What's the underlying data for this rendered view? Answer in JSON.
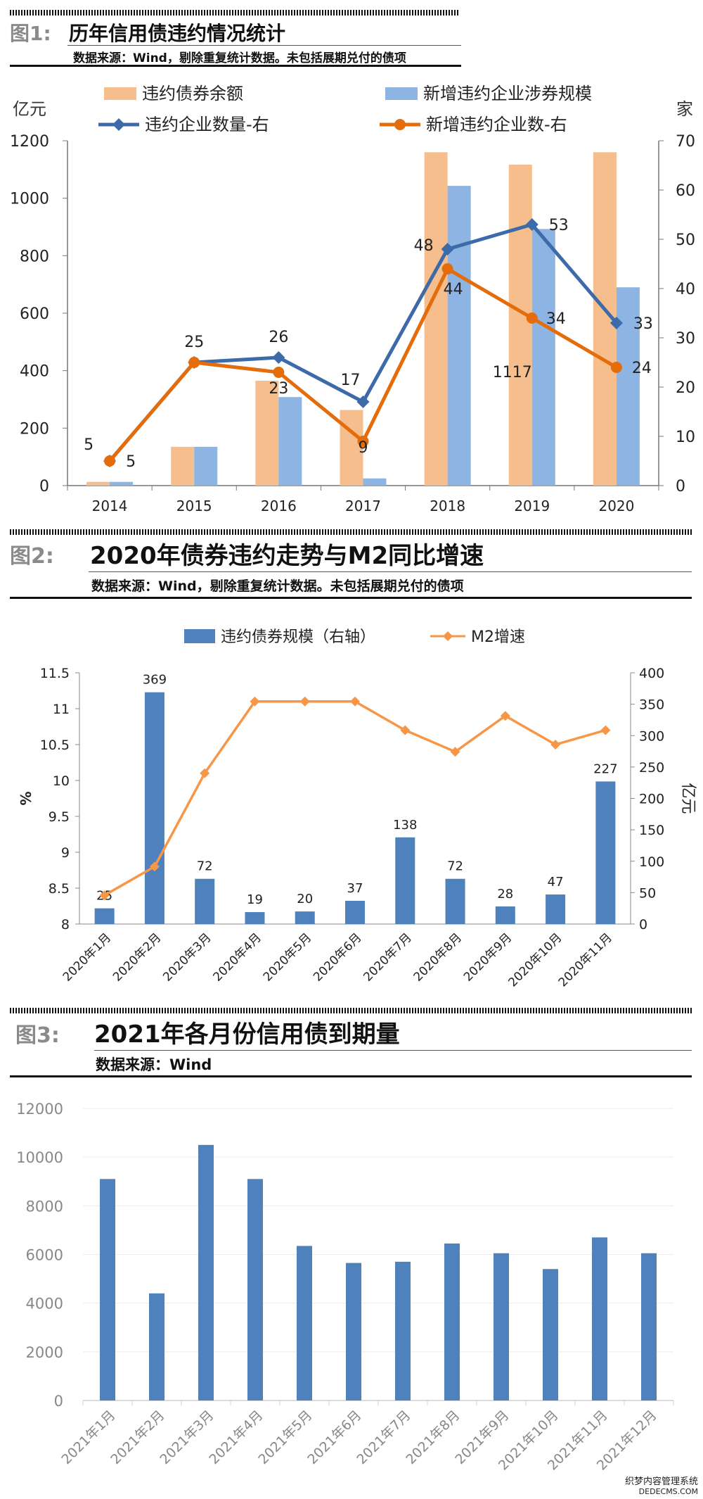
{
  "figures": [
    {
      "label": "图1:",
      "title": "历年信用债违约情况统计",
      "source": "数据来源：Wind，剔除重复统计数据。未包括展期兑付的债项",
      "chart_data": {
        "type": "bar+line",
        "categories": [
          "2014",
          "2015",
          "2016",
          "2017",
          "2018",
          "2019",
          "2020"
        ],
        "left_unit": "亿元",
        "right_unit": "家",
        "ylim_left": [
          0,
          1200
        ],
        "yticks_left": [
          "0",
          "200",
          "400",
          "600",
          "800",
          "1000",
          "1200"
        ],
        "ylim_right": [
          0,
          70
        ],
        "yticks_right": [
          "0",
          "10",
          "20",
          "30",
          "40",
          "50",
          "60",
          "70"
        ],
        "bar_series": [
          {
            "name": "违约债券余额",
            "color": "#f5be8c",
            "values": [
              13,
              135,
              365,
              263,
              1160,
              1117,
              1160
            ]
          },
          {
            "name": "新增违约企业涉券规模",
            "color": "#8db4e2",
            "values": [
              13,
              135,
              308,
              25,
              1043,
              893,
              690
            ]
          }
        ],
        "line_series": [
          {
            "name": "违约企业数量-右",
            "color": "#3d6aa8",
            "marker": "diamond",
            "values": [
              5,
              25,
              26,
              17,
              48,
              53,
              33
            ]
          },
          {
            "name": "新增违约企业数-右",
            "color": "#e46c0a",
            "marker": "circle",
            "values": [
              5,
              25,
              23,
              9,
              44,
              34,
              24
            ]
          }
        ],
        "data_labels": [
          "5",
          "5",
          "25",
          "26",
          "23",
          "17",
          "9",
          "48",
          "44",
          "53",
          "34",
          "1117",
          "33",
          "24"
        ]
      }
    },
    {
      "label": "图2:",
      "title": "2020年债券违约走势与M2同比增速",
      "source": "数据来源：Wind，剔除重复统计数据。未包括展期兑付的债项",
      "chart_data": {
        "type": "bar+line",
        "categories": [
          "2020年1月",
          "2020年2月",
          "2020年3月",
          "2020年4月",
          "2020年5月",
          "2020年6月",
          "2020年7月",
          "2020年8月",
          "2020年9月",
          "2020年10月",
          "2020年11月"
        ],
        "ylabel_left": "%",
        "ylabel_right": "亿元",
        "ylim_left": [
          8,
          11.5
        ],
        "yticks_left": [
          "8",
          "8.5",
          "9",
          "9.5",
          "10",
          "10.5",
          "11",
          "11.5"
        ],
        "ylim_right": [
          0,
          400
        ],
        "yticks_right": [
          "0",
          "50",
          "100",
          "150",
          "200",
          "250",
          "300",
          "350",
          "400"
        ],
        "bar_series": {
          "name": "违约债券规模（右轴）",
          "color": "#4f81bd",
          "values": [
            25,
            369,
            72,
            19,
            20,
            37,
            138,
            72,
            28,
            47,
            227
          ]
        },
        "line_series": {
          "name": "M2增速",
          "color": "#f79646",
          "marker": "diamond",
          "values": [
            8.4,
            8.8,
            10.1,
            11.1,
            11.1,
            11.1,
            10.7,
            10.4,
            10.9,
            10.5,
            10.7
          ]
        }
      }
    },
    {
      "label": "图3:",
      "title": "2021年各月份信用债到期量",
      "source": "数据来源：Wind",
      "chart_data": {
        "type": "bar",
        "categories": [
          "2021年1月",
          "2021年2月",
          "2021年3月",
          "2021年4月",
          "2021年5月",
          "2021年6月",
          "2021年7月",
          "2021年8月",
          "2021年9月",
          "2021年10月",
          "2021年11月",
          "2021年12月"
        ],
        "ylim": [
          0,
          12000
        ],
        "yticks": [
          "0",
          "2000",
          "4000",
          "6000",
          "8000",
          "10000",
          "12000"
        ],
        "series": {
          "color": "#4f81bd",
          "values": [
            9100,
            4400,
            10500,
            9100,
            6350,
            5650,
            5700,
            6450,
            6050,
            5400,
            6700,
            6050
          ]
        }
      }
    }
  ],
  "watermark": {
    "line1": "织梦内容管理系统",
    "line2": "DEDECMS.COM"
  }
}
